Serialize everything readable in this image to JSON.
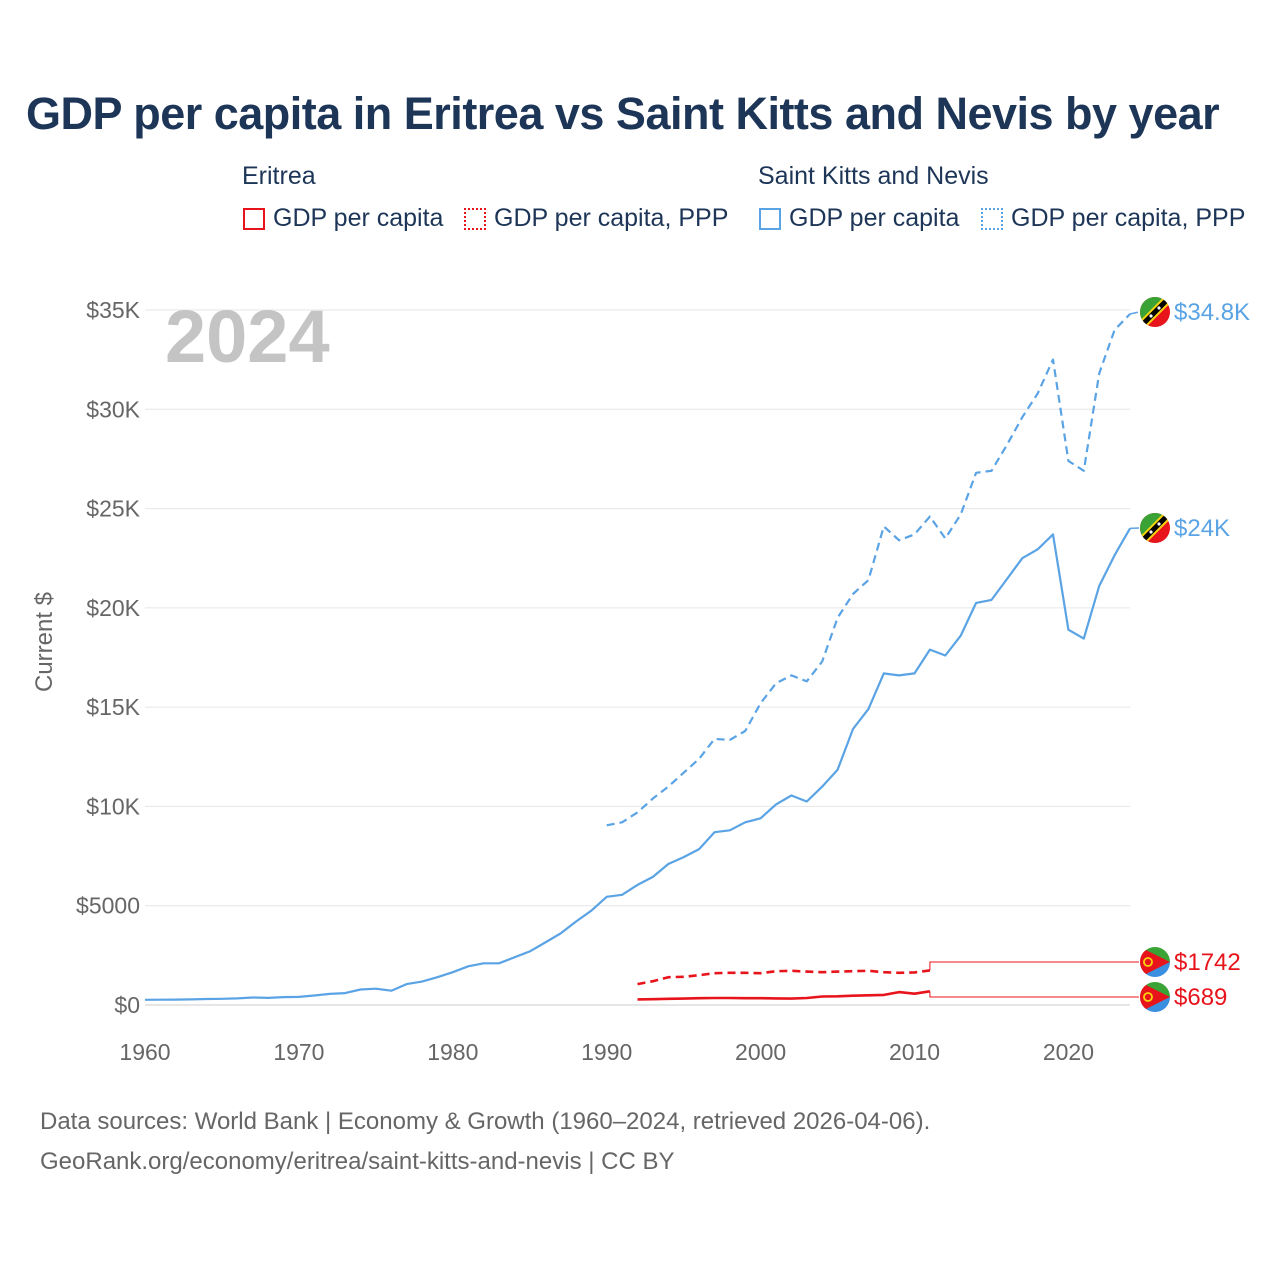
{
  "header": {
    "title": "GDP per capita in Eritrea vs Saint Kitts and Nevis by year"
  },
  "legend": {
    "groups": [
      {
        "country": "Eritrea",
        "items": [
          "GDP per capita",
          "GDP per capita, PPP"
        ],
        "color": "#e8141c"
      },
      {
        "country": "Saint Kitts and Nevis",
        "items": [
          "GDP per capita",
          "GDP per capita, PPP"
        ],
        "color": "#5aa3e4"
      }
    ]
  },
  "footer": {
    "line1": "Data sources: World Bank | Economy & Growth (1960–2024, retrieved 2026-04-06).",
    "line2": "GeoRank.org/economy/eritrea/saint-kitts-and-nevis | CC BY"
  },
  "chart_data": {
    "type": "line",
    "title": "GDP per capita in Eritrea vs Saint Kitts and Nevis by year",
    "year_label": "2024",
    "ylabel": "Current $",
    "xlabel": "",
    "xlim": [
      1960,
      2024
    ],
    "ylim": [
      0,
      35000
    ],
    "x_ticks": [
      "1960",
      "1970",
      "1980",
      "1990",
      "2000",
      "2010",
      "2020"
    ],
    "y_ticks": [
      "$0",
      "$5000",
      "$10K",
      "$15K",
      "$20K",
      "$25K",
      "$30K",
      "$35K"
    ],
    "grid": true,
    "series": [
      {
        "name": "Saint Kitts and Nevis GDP per capita, PPP",
        "color": "#5aa3e4",
        "style": "dashed",
        "end_label": "$34.8K",
        "points": [
          [
            1990,
            9050
          ],
          [
            1991,
            9200
          ],
          [
            1992,
            9700
          ],
          [
            1993,
            10400
          ],
          [
            1994,
            11000
          ],
          [
            1995,
            11700
          ],
          [
            1996,
            12400
          ],
          [
            1997,
            13400
          ],
          [
            1998,
            13350
          ],
          [
            1999,
            13800
          ],
          [
            2000,
            15200
          ],
          [
            2001,
            16200
          ],
          [
            2002,
            16600
          ],
          [
            2003,
            16300
          ],
          [
            2004,
            17300
          ],
          [
            2005,
            19500
          ],
          [
            2006,
            20700
          ],
          [
            2007,
            21400
          ],
          [
            2008,
            24100
          ],
          [
            2009,
            23400
          ],
          [
            2010,
            23700
          ],
          [
            2011,
            24600
          ],
          [
            2012,
            23500
          ],
          [
            2013,
            24700
          ],
          [
            2014,
            26800
          ],
          [
            2015,
            26900
          ],
          [
            2016,
            28200
          ],
          [
            2017,
            29600
          ],
          [
            2018,
            30800
          ],
          [
            2019,
            32500
          ],
          [
            2020,
            27400
          ],
          [
            2021,
            26900
          ],
          [
            2022,
            31800
          ],
          [
            2023,
            34000
          ],
          [
            2024,
            34800
          ]
        ]
      },
      {
        "name": "Saint Kitts and Nevis GDP per capita",
        "color": "#5aa3e4",
        "style": "solid",
        "end_label": "$24K",
        "points": [
          [
            1960,
            260
          ],
          [
            1961,
            265
          ],
          [
            1962,
            270
          ],
          [
            1963,
            280
          ],
          [
            1964,
            300
          ],
          [
            1965,
            310
          ],
          [
            1966,
            330
          ],
          [
            1967,
            380
          ],
          [
            1968,
            360
          ],
          [
            1969,
            400
          ],
          [
            1970,
            410
          ],
          [
            1971,
            480
          ],
          [
            1972,
            560
          ],
          [
            1973,
            600
          ],
          [
            1974,
            780
          ],
          [
            1975,
            820
          ],
          [
            1976,
            720
          ],
          [
            1977,
            1050
          ],
          [
            1978,
            1180
          ],
          [
            1979,
            1400
          ],
          [
            1980,
            1650
          ],
          [
            1981,
            1950
          ],
          [
            1982,
            2100
          ],
          [
            1983,
            2100
          ],
          [
            1984,
            2400
          ],
          [
            1985,
            2700
          ],
          [
            1986,
            3150
          ],
          [
            1987,
            3600
          ],
          [
            1988,
            4200
          ],
          [
            1989,
            4750
          ],
          [
            1990,
            5450
          ],
          [
            1991,
            5550
          ],
          [
            1992,
            6050
          ],
          [
            1993,
            6450
          ],
          [
            1994,
            7100
          ],
          [
            1995,
            7450
          ],
          [
            1996,
            7850
          ],
          [
            1997,
            8700
          ],
          [
            1998,
            8800
          ],
          [
            1999,
            9200
          ],
          [
            2000,
            9400
          ],
          [
            2001,
            10100
          ],
          [
            2002,
            10550
          ],
          [
            2003,
            10250
          ],
          [
            2004,
            11000
          ],
          [
            2005,
            11850
          ],
          [
            2006,
            13900
          ],
          [
            2007,
            14900
          ],
          [
            2008,
            16700
          ],
          [
            2009,
            16600
          ],
          [
            2010,
            16700
          ],
          [
            2011,
            17900
          ],
          [
            2012,
            17600
          ],
          [
            2013,
            18600
          ],
          [
            2014,
            20250
          ],
          [
            2015,
            20400
          ],
          [
            2016,
            21450
          ],
          [
            2017,
            22500
          ],
          [
            2018,
            22950
          ],
          [
            2019,
            23700
          ],
          [
            2020,
            18900
          ],
          [
            2021,
            18450
          ],
          [
            2022,
            21100
          ],
          [
            2023,
            22650
          ],
          [
            2024,
            24000
          ]
        ]
      },
      {
        "name": "Eritrea GDP per capita, PPP",
        "color": "#e8141c",
        "style": "dashed",
        "end_label": "$1742",
        "points": [
          [
            1992,
            1050
          ],
          [
            1993,
            1200
          ],
          [
            1994,
            1400
          ],
          [
            1995,
            1420
          ],
          [
            1996,
            1500
          ],
          [
            1997,
            1600
          ],
          [
            1998,
            1620
          ],
          [
            1999,
            1620
          ],
          [
            2000,
            1600
          ],
          [
            2001,
            1700
          ],
          [
            2002,
            1720
          ],
          [
            2003,
            1680
          ],
          [
            2004,
            1650
          ],
          [
            2005,
            1680
          ],
          [
            2006,
            1700
          ],
          [
            2007,
            1720
          ],
          [
            2008,
            1650
          ],
          [
            2009,
            1620
          ],
          [
            2010,
            1640
          ],
          [
            2011,
            1742
          ]
        ]
      },
      {
        "name": "Eritrea GDP per capita",
        "color": "#e8141c",
        "style": "solid",
        "end_label": "$689",
        "points": [
          [
            1992,
            280
          ],
          [
            1993,
            290
          ],
          [
            1994,
            310
          ],
          [
            1995,
            320
          ],
          [
            1996,
            340
          ],
          [
            1997,
            350
          ],
          [
            1998,
            350
          ],
          [
            1999,
            340
          ],
          [
            2000,
            340
          ],
          [
            2001,
            330
          ],
          [
            2002,
            320
          ],
          [
            2003,
            350
          ],
          [
            2004,
            430
          ],
          [
            2005,
            440
          ],
          [
            2006,
            470
          ],
          [
            2007,
            490
          ],
          [
            2008,
            510
          ],
          [
            2009,
            650
          ],
          [
            2010,
            570
          ],
          [
            2011,
            689
          ]
        ]
      }
    ]
  }
}
